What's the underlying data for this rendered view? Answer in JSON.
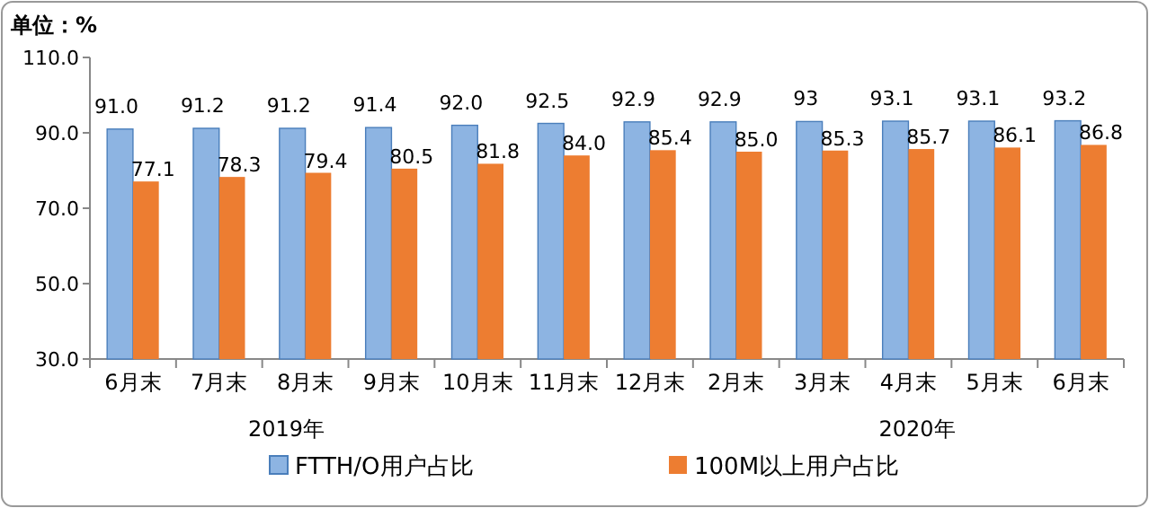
{
  "chart_data": {
    "type": "bar",
    "title": "单位：%",
    "categories": [
      "6月末",
      "7月末",
      "8月末",
      "9月末",
      "10月末",
      "11月末",
      "12月末",
      "2月末",
      "3月末",
      "4月末",
      "5月末",
      "6月末"
    ],
    "series": [
      {
        "name": "FTTH/O用户占比",
        "color": "#8db4e2",
        "values": [
          91.0,
          91.2,
          91.2,
          91.4,
          92.0,
          92.5,
          92.9,
          92.9,
          93,
          93.1,
          93.1,
          93.2
        ],
        "value_labels": [
          "91.0",
          "91.2",
          "91.2",
          "91.4",
          "92.0",
          "92.5",
          "92.9",
          "92.9",
          "93",
          "93.1",
          "93.1",
          "93.2"
        ]
      },
      {
        "name": "100M以上用户占比",
        "color": "#ed7d31",
        "values": [
          77.1,
          78.3,
          79.4,
          80.5,
          81.8,
          84.0,
          85.4,
          85.0,
          85.3,
          85.7,
          86.1,
          86.8
        ],
        "value_labels": [
          "77.1",
          "78.3",
          "79.4",
          "80.5",
          "81.8",
          "84.0",
          "85.4",
          "85.0",
          "85.3",
          "85.7",
          "86.1",
          "86.8"
        ]
      }
    ],
    "ylim": [
      30,
      110
    ],
    "yticks": [
      {
        "value": 30,
        "label": "30.0"
      },
      {
        "value": 50,
        "label": "50.0"
      },
      {
        "value": 70,
        "label": "70.0"
      },
      {
        "value": 90,
        "label": "90.0"
      },
      {
        "value": 110,
        "label": "110.0"
      }
    ],
    "annotations": [
      "2019年",
      "2020年"
    ],
    "grid": false,
    "legend": "bottom"
  }
}
